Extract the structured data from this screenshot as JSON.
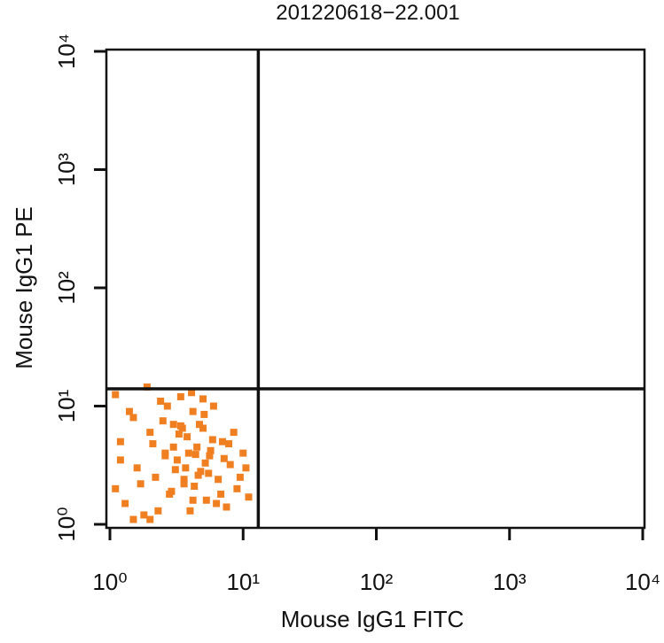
{
  "chart_data": {
    "type": "scatter",
    "title": "201220618−22.001",
    "x_label": "Mouse IgG1 FITC",
    "y_label": "Mouse IgG1 PE",
    "x_scale": "log",
    "y_scale": "log",
    "xlim": [
      1,
      10000
    ],
    "ylim": [
      1,
      10000
    ],
    "xticks": [
      {
        "value": 1,
        "label": "10⁰"
      },
      {
        "value": 10,
        "label": "10¹"
      },
      {
        "value": 100,
        "label": "10²"
      },
      {
        "value": 1000,
        "label": "10³"
      },
      {
        "value": 10000,
        "label": "10⁴"
      }
    ],
    "yticks": [
      {
        "value": 1,
        "label": "10⁰"
      },
      {
        "value": 10,
        "label": "10¹"
      },
      {
        "value": 100,
        "label": "10²"
      },
      {
        "value": 1000,
        "label": "10³"
      },
      {
        "value": 10000,
        "label": "10⁴"
      }
    ],
    "gates": {
      "x": 13,
      "y": 14
    },
    "color": "#f07f22",
    "x": [
      1.1,
      1.2,
      1.3,
      1.5,
      1.6,
      1.8,
      2.0,
      2.2,
      2.4,
      2.6,
      2.8,
      3.0,
      3.2,
      3.4,
      3.6,
      3.8,
      4.0,
      4.2,
      4.5,
      4.8,
      5.0,
      5.3,
      5.6,
      6.0,
      6.5,
      7.0,
      7.5,
      8.0,
      9.0,
      10.0,
      11.0,
      1.2,
      1.4,
      1.7,
      2.1,
      2.5,
      2.9,
      3.3,
      3.7,
      4.1,
      4.6,
      5.1,
      5.7,
      6.3,
      7.2,
      8.5,
      9.5,
      2.3,
      2.7,
      3.1,
      3.5,
      3.9,
      4.3,
      4.7,
      5.2,
      5.9,
      6.8,
      3.0,
      3.6,
      4.4,
      5.0,
      2.0,
      2.6,
      3.4,
      4.2,
      5.5,
      7.8,
      10.5,
      1.1,
      1.5,
      1.9
    ],
    "values": [
      2.0,
      5.0,
      1.5,
      8.0,
      3.0,
      1.2,
      6.0,
      2.5,
      11.0,
      4.0,
      1.8,
      7.0,
      3.5,
      12.0,
      2.2,
      5.5,
      1.3,
      9.0,
      4.5,
      2.8,
      6.5,
      1.6,
      3.8,
      10.0,
      2.4,
      5.0,
      1.4,
      3.2,
      2.0,
      4.0,
      1.7,
      3.5,
      9.0,
      2.2,
      4.8,
      7.5,
      1.9,
      5.8,
      3.0,
      13.0,
      2.6,
      8.5,
      4.2,
      1.5,
      3.6,
      6.0,
      2.5,
      1.3,
      10.0,
      2.9,
      6.5,
      4.0,
      2.1,
      7.0,
      3.3,
      5.2,
      1.8,
      4.5,
      2.4,
      3.9,
      11.5,
      1.1,
      3.8,
      6.8,
      1.6,
      2.7,
      4.8,
      3.0,
      12.5,
      1.1,
      14.5
    ]
  }
}
